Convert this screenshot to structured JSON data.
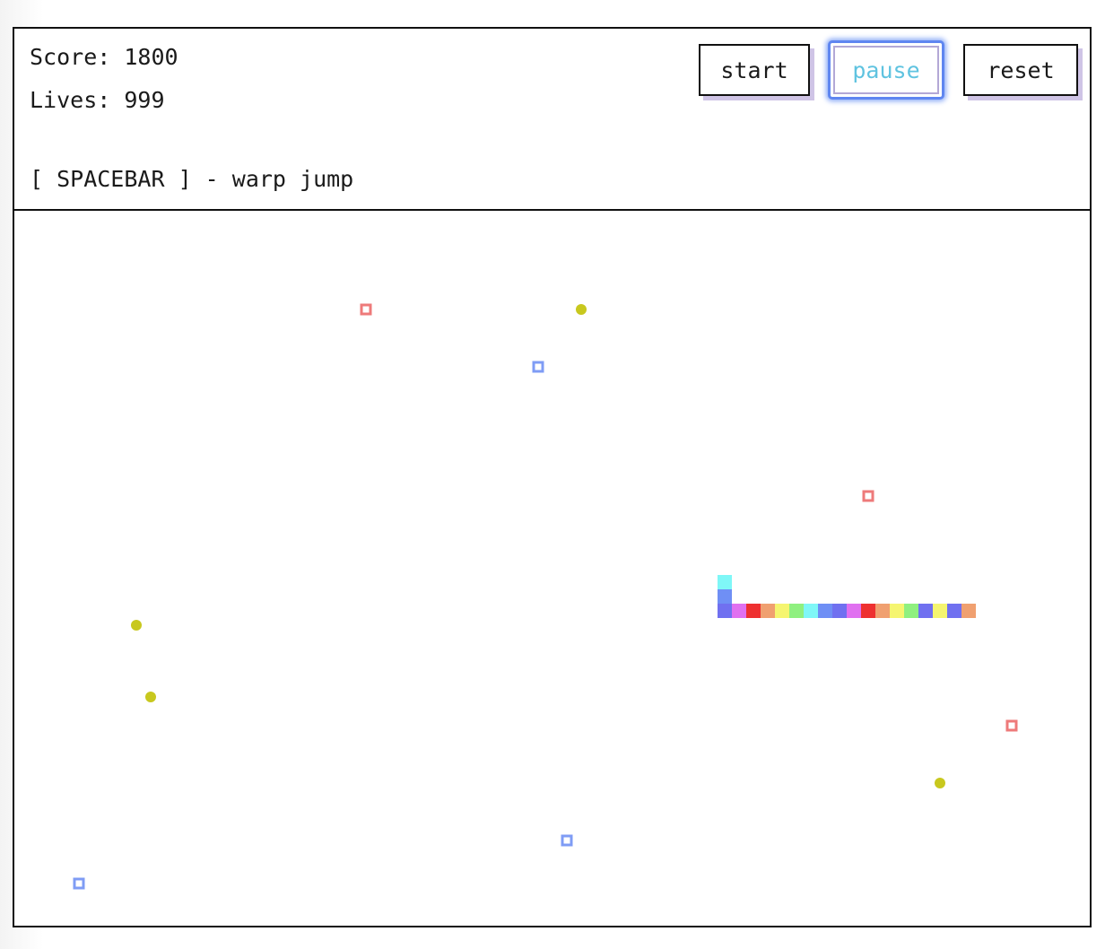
{
  "hud": {
    "score_text": "Score: 1800",
    "lives_text": "Lives: 999",
    "help_text": "[ SPACEBAR ] - warp jump"
  },
  "controls": {
    "start_label": "start",
    "pause_label": "pause",
    "reset_label": "reset"
  },
  "colors": {
    "border": "#111111",
    "pause_focus": "#5f86f0",
    "pause_text": "#5fc3e0",
    "food_yellow": "#c8c81e",
    "hazard_red": "#ee7a7a",
    "warp_blue": "#7f9cf5"
  },
  "game": {
    "grid_cell": 16,
    "snake": {
      "segments": [
        {
          "col": 49,
          "row": 25,
          "color": "#7ff7f7"
        },
        {
          "col": 49,
          "row": 26,
          "color": "#6f8ff5"
        },
        {
          "col": 49,
          "row": 27,
          "color": "#7070f0"
        },
        {
          "col": 50,
          "row": 27,
          "color": "#e070f0"
        },
        {
          "col": 51,
          "row": 27,
          "color": "#ee3030"
        },
        {
          "col": 52,
          "row": 27,
          "color": "#f0a070"
        },
        {
          "col": 53,
          "row": 27,
          "color": "#f5f570"
        },
        {
          "col": 54,
          "row": 27,
          "color": "#8ff07f"
        },
        {
          "col": 55,
          "row": 27,
          "color": "#7ff7f7"
        },
        {
          "col": 56,
          "row": 27,
          "color": "#6f8ff5"
        },
        {
          "col": 57,
          "row": 27,
          "color": "#7070f0"
        },
        {
          "col": 58,
          "row": 27,
          "color": "#e070f0"
        },
        {
          "col": 59,
          "row": 27,
          "color": "#ee3030"
        },
        {
          "col": 60,
          "row": 27,
          "color": "#f0a070"
        },
        {
          "col": 61,
          "row": 27,
          "color": "#f5f570"
        },
        {
          "col": 62,
          "row": 27,
          "color": "#8ff07f"
        },
        {
          "col": 63,
          "row": 27,
          "color": "#7070f0"
        },
        {
          "col": 64,
          "row": 27,
          "color": "#f5f570"
        },
        {
          "col": 65,
          "row": 27,
          "color": "#7070f0"
        },
        {
          "col": 66,
          "row": 27,
          "color": "#f0a070"
        }
      ]
    },
    "food": [
      {
        "col": 39,
        "row": 6
      },
      {
        "col": 8,
        "row": 28
      },
      {
        "col": 9,
        "row": 33
      },
      {
        "col": 64,
        "row": 39
      }
    ],
    "hazards": [
      {
        "col": 24,
        "row": 6
      },
      {
        "col": 59,
        "row": 19
      },
      {
        "col": 69,
        "row": 35
      }
    ],
    "warps": [
      {
        "col": 36,
        "row": 10
      },
      {
        "col": 38,
        "row": 43
      },
      {
        "col": 4,
        "row": 46
      }
    ]
  }
}
